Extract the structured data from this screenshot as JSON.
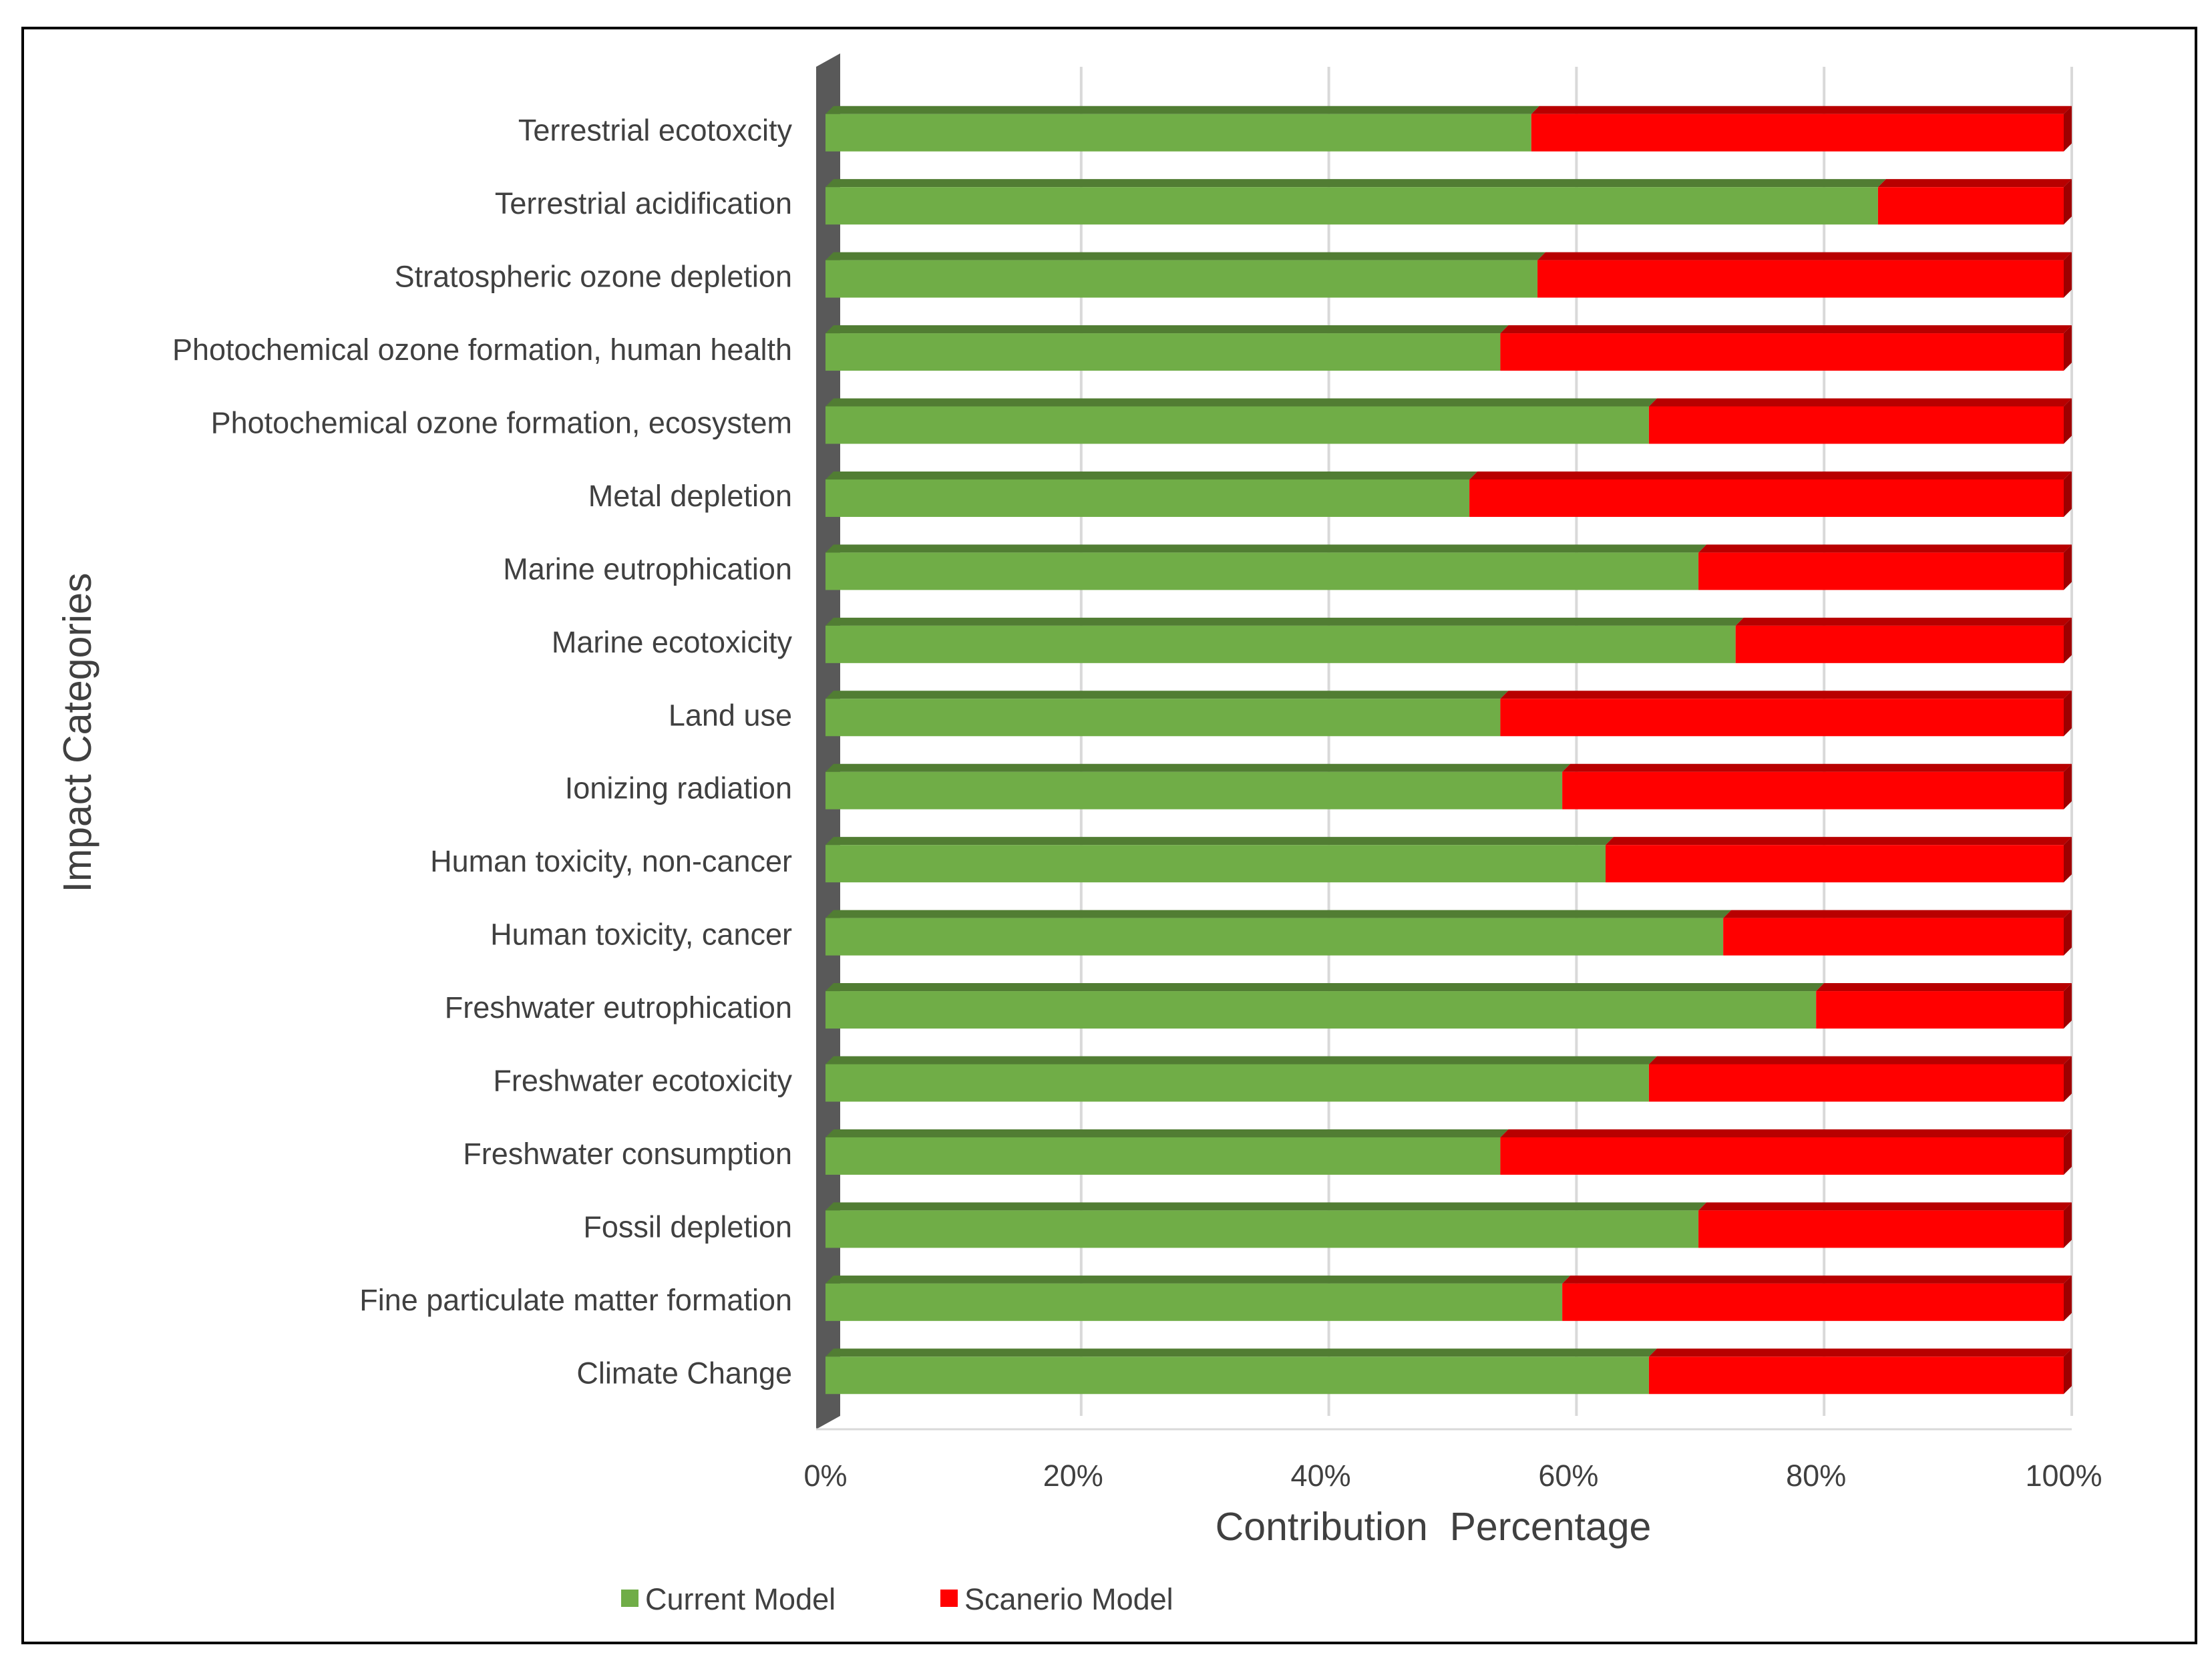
{
  "chart_data": {
    "type": "bar",
    "orientation": "horizontal",
    "stacking": "percent",
    "xlabel": "Contribution  Percentage",
    "ylabel": "Impact Categories",
    "xlim": [
      0,
      100
    ],
    "xticks": [
      "0%",
      "20%",
      "40%",
      "60%",
      "80%",
      "100%"
    ],
    "grid": true,
    "legend_position": "bottom",
    "categories": [
      "Terrestrial ecotoxcity",
      "Terrestrial acidification",
      "Stratospheric ozone depletion",
      "Photochemical ozone formation, human health",
      "Photochemical ozone formation, ecosystem",
      "Metal depletion",
      "Marine eutrophication",
      "Marine ecotoxicity",
      "Land use",
      "Ionizing radiation",
      "Human toxicity, non-cancer",
      "Human toxicity, cancer",
      "Freshwater eutrophication",
      "Freshwater ecotoxicity",
      "Freshwater consumption",
      "Fossil depletion",
      "Fine particulate matter formation",
      "Climate Change"
    ],
    "series": [
      {
        "name": "Current Model",
        "color": "#70ad47",
        "values": [
          57,
          85,
          57.5,
          54.5,
          66.5,
          52,
          70.5,
          73.5,
          54.5,
          59.5,
          63,
          72.5,
          80,
          66.5,
          54.5,
          70.5,
          59.5,
          66.5
        ]
      },
      {
        "name": "Scanerio Model",
        "color": "#ff0000",
        "values": [
          43,
          15,
          42.5,
          45.5,
          33.5,
          48,
          29.5,
          26.5,
          45.5,
          40.5,
          37,
          27.5,
          20,
          33.5,
          45.5,
          29.5,
          40.5,
          33.5
        ]
      }
    ]
  }
}
